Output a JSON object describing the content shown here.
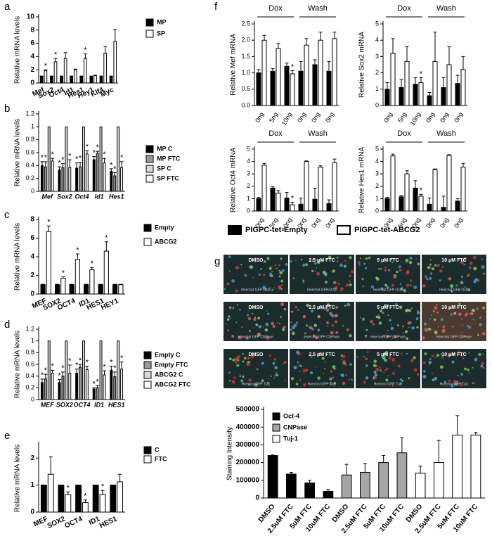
{
  "chart_data": [
    {
      "type": "bar",
      "panel": "a",
      "ylabel": "Relative mRNA levels",
      "categories": [
        "Mef",
        "Sox2",
        "Oct4",
        "Id1",
        "Hes1",
        "Hey1",
        "Klf4",
        "Myc"
      ],
      "ylim": [
        0,
        10
      ],
      "yticks": [
        0,
        2,
        4,
        6,
        8,
        10
      ],
      "series": [
        {
          "name": "MP",
          "color": "#000000",
          "values": [
            1,
            1,
            1,
            1,
            1,
            1,
            1,
            1
          ],
          "errors": [
            0.05,
            0.05,
            0.05,
            0.05,
            0.05,
            0.05,
            0.05,
            0.05
          ]
        },
        {
          "name": "SP",
          "color": "#ffffff",
          "values": [
            1.9,
            3.2,
            3.7,
            2.0,
            3.7,
            1.1,
            4.5,
            6.3
          ],
          "errors": [
            0.1,
            0.5,
            0.9,
            0.1,
            0.7,
            0.1,
            1.0,
            1.8
          ],
          "significance": [
            "*",
            "*",
            null,
            null,
            "*",
            null,
            null,
            null
          ]
        }
      ]
    },
    {
      "type": "bar",
      "panel": "b",
      "ylabel": "Relative mRNA levels",
      "categories": [
        "Mef",
        "Sox2",
        "Oct4",
        "Id1",
        "Hes1"
      ],
      "ylim": [
        0,
        1.2
      ],
      "yticks": [
        0,
        0.2,
        0.4,
        0.6,
        0.8,
        1,
        1.2
      ],
      "series": [
        {
          "name": "MP C",
          "color": "#000000",
          "values": [
            0.4,
            0.33,
            0.36,
            0.49,
            0.31
          ],
          "errors": [
            0.06,
            0.05,
            0.08,
            0.05,
            0.04
          ],
          "significance": [
            "*",
            "*",
            "*",
            "*",
            "*"
          ]
        },
        {
          "name": "MP FTC",
          "color": "#999999",
          "values": [
            0.38,
            0.37,
            0.38,
            0.59,
            0.24
          ],
          "errors": [
            0.08,
            0.06,
            0.07,
            0.03,
            0.05
          ],
          "significance": [
            "*",
            "*",
            "*",
            "*",
            "*"
          ]
        },
        {
          "name": "SP C",
          "color": "#d9d9d9",
          "values": [
            1,
            1,
            1,
            1,
            1
          ],
          "errors": [
            0,
            0,
            0,
            0,
            0
          ]
        },
        {
          "name": "SP FTC",
          "color": "#ffffff",
          "values": [
            0.47,
            0.37,
            0.58,
            0.44,
            0.37
          ],
          "errors": [
            0.04,
            0.12,
            0.05,
            0.07,
            0.09
          ],
          "significance": [
            "*",
            "*",
            "*",
            "*",
            "*"
          ]
        }
      ]
    },
    {
      "type": "bar",
      "panel": "c",
      "ylabel": "Relative mRNA levels",
      "categories": [
        "MEF",
        "SOX2",
        "OCT4",
        "ID1",
        "HES1",
        "HEY1"
      ],
      "ylim": [
        0,
        8
      ],
      "yticks": [
        0,
        2,
        4,
        6,
        8
      ],
      "series": [
        {
          "name": "Empty",
          "color": "#000000",
          "values": [
            1,
            1,
            1,
            1,
            1,
            1
          ],
          "errors": [
            0.05,
            0.05,
            0.05,
            0.05,
            0.05,
            0.05
          ]
        },
        {
          "name": "ABCG2",
          "color": "#ffffff",
          "values": [
            6.7,
            1.7,
            3.7,
            2.6,
            4.6,
            1.0
          ],
          "errors": [
            0.6,
            0.15,
            0.6,
            0.25,
            1.0,
            0.05
          ],
          "significance": [
            "*",
            "*",
            "*",
            "*",
            "*",
            null
          ]
        }
      ]
    },
    {
      "type": "bar",
      "panel": "d",
      "ylabel": "Relative mRNA levels",
      "categories": [
        "MEF",
        "SOX2",
        "OCT4",
        "ID1",
        "HES1"
      ],
      "ylim": [
        0,
        1.2
      ],
      "yticks": [
        0,
        0.2,
        0.4,
        0.6,
        0.8,
        1,
        1.2
      ],
      "series": [
        {
          "name": "Empty C",
          "color": "#000000",
          "values": [
            0.29,
            0.29,
            0.45,
            0.18,
            0.5
          ],
          "errors": [
            0.06,
            0.05,
            0.07,
            0.02,
            0.07
          ],
          "significance": [
            "*",
            "*",
            "*",
            "*",
            "*"
          ]
        },
        {
          "name": "Empty FTC",
          "color": "#999999",
          "values": [
            0.35,
            0.4,
            0.55,
            0.2,
            0.39
          ],
          "errors": [
            0.08,
            0.07,
            0.05,
            0.04,
            0.08
          ],
          "significance": [
            "*",
            "*",
            "*",
            "*",
            "*"
          ]
        },
        {
          "name": "ABCG2 C",
          "color": "#d9d9d9",
          "values": [
            1,
            1,
            1,
            1,
            1
          ],
          "errors": [
            0,
            0,
            0,
            0,
            0
          ]
        },
        {
          "name": "ABCG2 FTC",
          "color": "#ffffff",
          "values": [
            0.45,
            0.45,
            0.51,
            0.42,
            0.52
          ],
          "errors": [
            0.05,
            0.14,
            0.06,
            0.07,
            0.12
          ],
          "significance": [
            "*",
            "*",
            "*",
            "*",
            "*"
          ]
        }
      ]
    },
    {
      "type": "bar",
      "panel": "e",
      "ylabel": "Relative mRNA levels",
      "categories": [
        "MEF",
        "SOX2",
        "OCT4",
        "ID1",
        "HES1"
      ],
      "ylim": [
        0,
        2.5
      ],
      "yticks": [
        0,
        1,
        2
      ],
      "series": [
        {
          "name": "C",
          "color": "#000000",
          "values": [
            1,
            1,
            1,
            1,
            1
          ],
          "errors": [
            0,
            0,
            0,
            0,
            0
          ]
        },
        {
          "name": "FTC",
          "color": "#ffffff",
          "values": [
            1.4,
            0.65,
            0.35,
            0.65,
            1.12
          ],
          "errors": [
            0.65,
            0.1,
            0.1,
            0.15,
            0.28
          ],
          "significance": [
            null,
            "*",
            "*",
            "*",
            null
          ]
        }
      ]
    },
    {
      "type": "bar",
      "panel": "f",
      "ylabel": "Relative Mef mRNA",
      "groups": [
        "Dox",
        "Wash"
      ],
      "categories": [
        "0ng",
        "5ng",
        "10ng",
        "0ng",
        "0ng",
        "0ng"
      ],
      "ylim": [
        0,
        2.5
      ],
      "yticks": [
        {
          "value": 0,
          "label": "0.0"
        },
        0.5,
        {
          "value": 1,
          "label": "1.0"
        },
        1.5,
        {
          "value": 2,
          "label": "2.0"
        },
        2.5
      ],
      "series": [
        {
          "name": "PIGPC-tet-Empty",
          "color": "#000000",
          "values": [
            1.0,
            1.05,
            1.2,
            1.05,
            1.25,
            1.05
          ],
          "errors": [
            0.1,
            0.08,
            0.1,
            0.3,
            0.15,
            0.3
          ]
        },
        {
          "name": "PIGPC-tet-ABCG2",
          "color": "#ffffff",
          "values": [
            2.0,
            1.75,
            0.97,
            1.85,
            2.0,
            2.05
          ],
          "errors": [
            0.15,
            0.15,
            0.1,
            0.2,
            0.25,
            0.2
          ],
          "significance": [
            null,
            null,
            "*",
            null,
            null,
            null
          ]
        }
      ]
    },
    {
      "type": "bar",
      "ylabel": "Relative Sox2 mRNA",
      "groups": [
        "Dox",
        "Wash"
      ],
      "categories": [
        "0ng",
        "5ng",
        "10ng",
        "0ng",
        "0ng",
        "0ng"
      ],
      "ylim": [
        0,
        5
      ],
      "yticks": [
        0,
        1,
        2,
        3,
        4,
        5
      ],
      "series": [
        {
          "color": "#000000",
          "values": [
            1.0,
            1.1,
            1.3,
            0.6,
            1.1,
            1.35
          ],
          "errors": [
            0.4,
            0.5,
            0.4,
            0.2,
            0.6,
            0.5
          ]
        },
        {
          "color": "#ffffff",
          "values": [
            3.2,
            2.7,
            1.4,
            2.7,
            2.5,
            2.2
          ],
          "errors": [
            0.9,
            0.9,
            0.3,
            1.8,
            1.1,
            0.8
          ],
          "significance": [
            null,
            null,
            "*",
            null,
            null,
            null
          ]
        }
      ]
    },
    {
      "type": "bar",
      "ylabel": "Relative Oct4 mRNA",
      "groups": [
        "Dox",
        "Wash"
      ],
      "categories": [
        "0ng",
        "5ng",
        "10ng",
        "0ng",
        "0ng",
        "0ng"
      ],
      "ylim": [
        0,
        5
      ],
      "yticks": [
        0,
        1,
        2,
        3,
        4,
        5
      ],
      "series": [
        {
          "color": "#000000",
          "values": [
            1.0,
            1.85,
            1.05,
            0.55,
            0.95,
            0.6
          ],
          "errors": [
            0.1,
            0.1,
            0.45,
            0.5,
            0.9,
            0.3
          ]
        },
        {
          "color": "#ffffff",
          "values": [
            3.7,
            1.45,
            0.5,
            4.0,
            3.55,
            3.9
          ],
          "errors": [
            0.15,
            0.2,
            0.2,
            0.05,
            0.1,
            0.3
          ],
          "significance": [
            null,
            null,
            "*",
            null,
            null,
            null
          ]
        }
      ]
    },
    {
      "type": "bar",
      "ylabel": "Relative Hes1 mRNA",
      "groups": [
        "Dox",
        "Wash"
      ],
      "categories": [
        "0ng",
        "5ng",
        "10ng",
        "0ng",
        "0ng",
        "0ng"
      ],
      "ylim": [
        0,
        5
      ],
      "yticks": [
        0,
        1,
        2,
        3,
        4,
        5
      ],
      "series": [
        {
          "color": "#000000",
          "values": [
            1.0,
            1.15,
            1.85,
            0.55,
            0.3,
            0.8
          ],
          "errors": [
            0.1,
            0.1,
            0.6,
            0.5,
            0.9,
            0.2
          ]
        },
        {
          "color": "#ffffff",
          "values": [
            4.45,
            3.0,
            1.2,
            3.35,
            4.5,
            3.55
          ],
          "errors": [
            0.15,
            0.25,
            0.15,
            0.05,
            0.05,
            0.3
          ],
          "significance": [
            null,
            null,
            "*",
            null,
            null,
            null
          ]
        }
      ]
    },
    {
      "type": "bar",
      "panel": "g",
      "ylabel": "Staining Intensity",
      "categories": [
        "DMSO",
        "2.5uM FTC",
        "5uM FTC",
        "10uM FTC",
        "DMSO",
        "2.5uM FTC",
        "5uM FTC",
        "10uM FTC",
        "DMSO",
        "2.5uM FTC",
        "5uM FTC",
        "10uM FTC"
      ],
      "ylim": [
        0,
        500000
      ],
      "yticks": [
        0,
        100000,
        200000,
        300000,
        400000,
        500000
      ],
      "series": [
        {
          "name": "Oct-4",
          "color": "#000000",
          "values": [
            240000,
            135000,
            85000,
            38000,
            null,
            null,
            null,
            null,
            null,
            null,
            null,
            null
          ],
          "errors": [
            3000,
            10000,
            15000,
            10000,
            null,
            null,
            null,
            null,
            null,
            null,
            null,
            null
          ]
        },
        {
          "name": "CNPase",
          "color": "#a6a6a6",
          "values": [
            null,
            null,
            null,
            null,
            130000,
            145000,
            200000,
            255000,
            null,
            null,
            null,
            null
          ],
          "errors": [
            null,
            null,
            null,
            null,
            60000,
            50000,
            40000,
            85000,
            null,
            null,
            null,
            null
          ]
        },
        {
          "name": "Tuj-1",
          "color": "#ffffff",
          "values": [
            null,
            null,
            null,
            null,
            null,
            null,
            null,
            null,
            140000,
            200000,
            355000,
            355000
          ],
          "errors": [
            null,
            null,
            null,
            null,
            null,
            null,
            null,
            null,
            40000,
            125000,
            110000,
            15000
          ]
        }
      ]
    }
  ],
  "images": {
    "columns": [
      "DMSO",
      "2.5 μM FTC",
      "5 μM FTC",
      "10 μM FTC"
    ],
    "rows": [
      "Hoechst GFP Oct4",
      "Hoechst GFP CNPase",
      "Hoechst GFP Tuj1"
    ]
  }
}
